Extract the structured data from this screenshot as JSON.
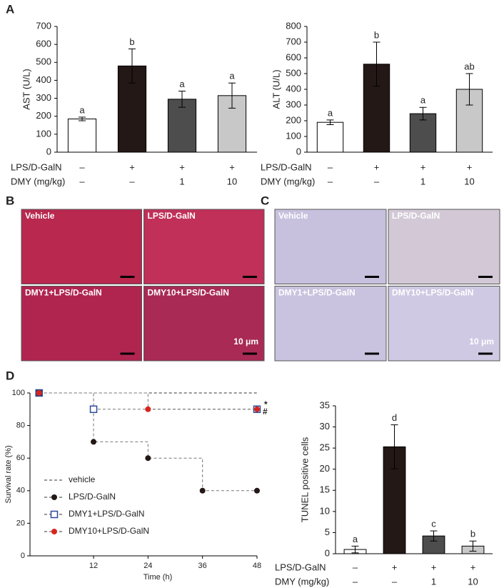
{
  "panels": [
    "A",
    "B",
    "C",
    "D"
  ],
  "histology": [
    {
      "labels": [
        "Vehicle",
        "LPS/D-GalN",
        "DMY1+LPS/D-GalN",
        "DMY10+LPS/D-GalN"
      ],
      "scale_bar": "10 μm"
    },
    {
      "labels": [
        "Vehicle",
        "LPS/D-GalN",
        "DMY1+LPS/D-GalN",
        "DMY10+LPS/D-GalN"
      ],
      "scale_bar": "10 μm"
    }
  ],
  "chart_data": [
    {
      "type": "bar",
      "ylabel": "AST (U/L)",
      "values": [
        185,
        480,
        295,
        315
      ],
      "errors": [
        10,
        95,
        45,
        70
      ],
      "significance": [
        "a",
        "b",
        "a",
        "a"
      ],
      "colors": [
        "#ffffff",
        "#231815",
        "#4d4d4d",
        "#c8c8c8"
      ],
      "ylim": [
        0,
        700
      ],
      "yticks": [
        0,
        100,
        200,
        300,
        400,
        500,
        600,
        700
      ],
      "conditions": [
        {
          "label": "LPS/D-GalN",
          "values": [
            "–",
            "+",
            "+",
            "+"
          ]
        },
        {
          "label": "DMY (mg/kg)",
          "values": [
            "–",
            "–",
            "1",
            "10"
          ]
        }
      ]
    },
    {
      "type": "bar",
      "ylabel": "ALT (U/L)",
      "values": [
        190,
        560,
        245,
        400
      ],
      "errors": [
        15,
        140,
        40,
        100
      ],
      "significance": [
        "a",
        "b",
        "a",
        "ab"
      ],
      "colors": [
        "#ffffff",
        "#231815",
        "#4d4d4d",
        "#c8c8c8"
      ],
      "ylim": [
        0,
        800
      ],
      "yticks": [
        0,
        100,
        200,
        300,
        400,
        500,
        600,
        700,
        800
      ],
      "conditions": [
        {
          "label": "LPS/D-GalN",
          "values": [
            "–",
            "+",
            "+",
            "+"
          ]
        },
        {
          "label": "DMY (mg/kg)",
          "values": [
            "–",
            "–",
            "1",
            "10"
          ]
        }
      ]
    },
    {
      "type": "line",
      "ylabel": "Survival rate (%)",
      "xlabel": "Time (h)",
      "xlim": [
        -2,
        48
      ],
      "xticks": [
        12,
        24,
        36,
        48
      ],
      "ylim": [
        0,
        100
      ],
      "yticks": [
        0,
        20,
        40,
        60,
        80,
        100
      ],
      "series": [
        {
          "name": "vehicle",
          "color": "#333333",
          "marker": "none",
          "x": [
            0,
            48
          ],
          "values": [
            100,
            100
          ]
        },
        {
          "name": "LPS/D-GalN",
          "color": "#231815",
          "marker": "circle",
          "x": [
            0,
            12,
            24,
            36,
            48
          ],
          "values": [
            100,
            70,
            60,
            40,
            40
          ]
        },
        {
          "name": "DMY1+LPS/D-GalN",
          "color": "#2b4a9b",
          "marker": "square",
          "x": [
            0,
            12,
            48
          ],
          "values": [
            100,
            90,
            90
          ]
        },
        {
          "name": "DMY10+LPS/D-GalN",
          "color": "#d7261e",
          "marker": "circle",
          "x": [
            0,
            24,
            48
          ],
          "values": [
            100,
            90,
            90
          ]
        }
      ],
      "annotations": [
        "#",
        "*"
      ]
    },
    {
      "type": "bar",
      "ylabel": "TUNEL positive cells",
      "values": [
        1,
        25.3,
        4.2,
        1.8
      ],
      "errors": [
        0.8,
        5.2,
        1.2,
        1.2
      ],
      "significance": [
        "a",
        "d",
        "c",
        "b"
      ],
      "colors": [
        "#ffffff",
        "#231815",
        "#4d4d4d",
        "#c8c8c8"
      ],
      "ylim": [
        0,
        35
      ],
      "yticks": [
        0,
        5,
        10,
        15,
        20,
        25,
        30,
        35
      ],
      "conditions": [
        {
          "label": "LPS/D-GalN",
          "values": [
            "–",
            "+",
            "+",
            "+"
          ]
        },
        {
          "label": "DMY (mg/kg)",
          "values": [
            "–",
            "–",
            "1",
            "10"
          ]
        }
      ]
    }
  ]
}
